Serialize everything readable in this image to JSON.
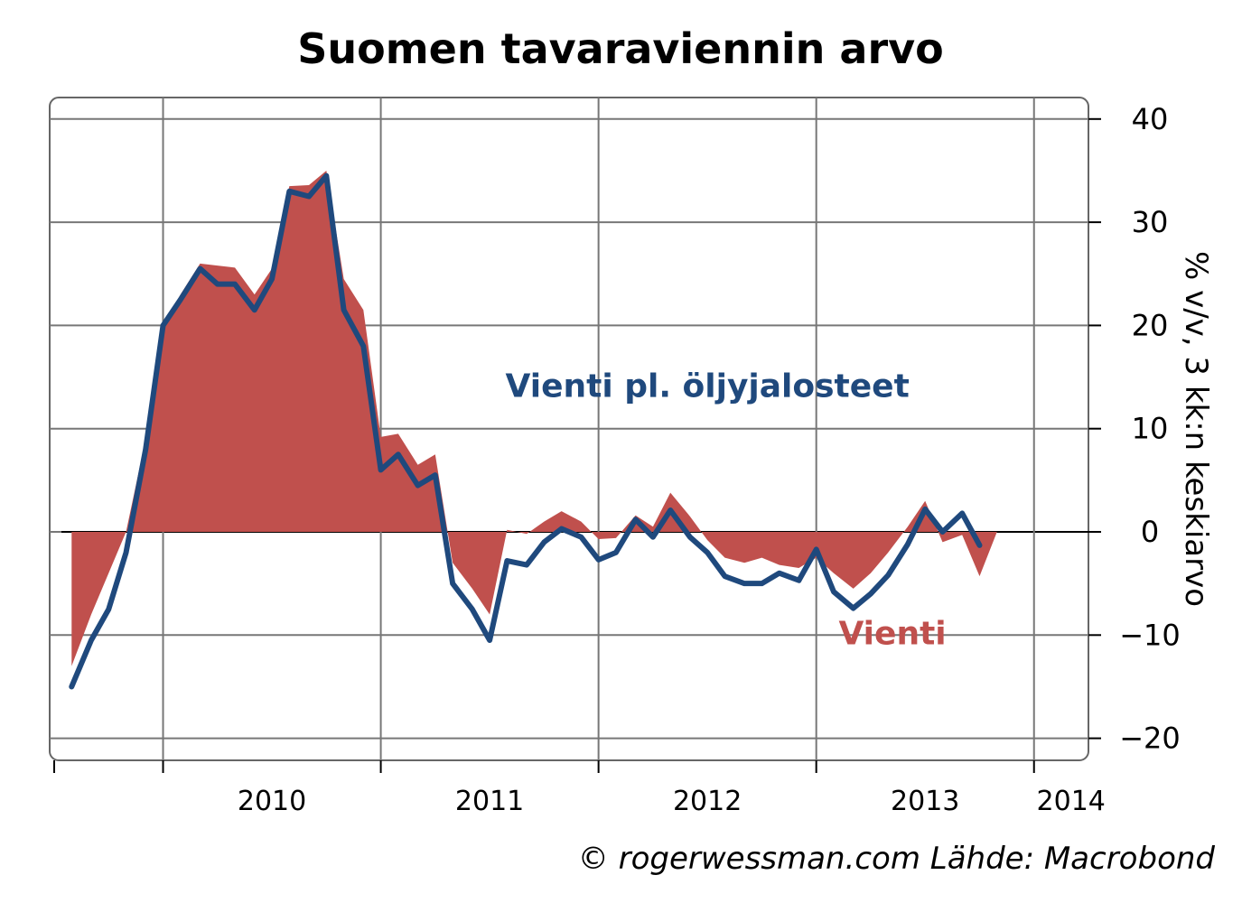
{
  "chart_data": {
    "type": "area",
    "title": "Suomen tavaraviennin arvo",
    "ylabel": "% v/v, 3 kk:n keskiarvo",
    "ylim": [
      -20,
      40
    ],
    "yticks": [
      -20,
      -10,
      0,
      10,
      20,
      30,
      40
    ],
    "y_axis_side": "right",
    "xlim": [
      2009.5,
      2014.25
    ],
    "xticks": [
      2010,
      2011,
      2012,
      2013,
      2014
    ],
    "xtick_labels": [
      "2010",
      "2011",
      "2012",
      "2013",
      "2014"
    ],
    "grid": true,
    "colors": {
      "vienti": "#c0504d",
      "vienti_pl": "#1f497d"
    },
    "series": [
      {
        "name": "Vienti",
        "style": "area",
        "x": [
          2009.58,
          2009.67,
          2009.75,
          2009.83,
          2009.92,
          2010.0,
          2010.08,
          2010.17,
          2010.25,
          2010.33,
          2010.42,
          2010.5,
          2010.58,
          2010.67,
          2010.75,
          2010.83,
          2010.92,
          2011.0,
          2011.08,
          2011.17,
          2011.25,
          2011.33,
          2011.42,
          2011.5,
          2011.58,
          2011.67,
          2011.75,
          2011.83,
          2011.92,
          2012.0,
          2012.08,
          2012.17,
          2012.25,
          2012.33,
          2012.42,
          2012.5,
          2012.58,
          2012.67,
          2012.75,
          2012.83,
          2012.92,
          2013.0,
          2013.08,
          2013.17,
          2013.25,
          2013.33,
          2013.42,
          2013.5,
          2013.58,
          2013.67,
          2013.75,
          2013.83,
          2013.92,
          2014.0,
          2014.08,
          2014.17
        ],
        "values": [
          -13,
          -8,
          -4,
          0,
          9,
          20,
          23,
          26,
          25.8,
          25.6,
          23,
          25.5,
          33.5,
          33.6,
          35,
          24.5,
          21.5,
          9.2,
          9.5,
          6.5,
          7.5,
          -3,
          -5.5,
          -8,
          0.2,
          -0.2,
          1,
          2,
          1,
          -0.7,
          -0.6,
          1.6,
          0.5,
          3.8,
          1.5,
          -0.8,
          -2.5,
          -3,
          -2.5,
          -3.2,
          -3.5,
          -2.5,
          -4,
          -5.5,
          -4,
          -2,
          0.5,
          3,
          -1,
          -0.3,
          -4.3,
          0,
          0,
          0,
          0,
          0
        ]
      },
      {
        "name": "Vienti pl. öljyjalosteet",
        "style": "line",
        "x": [
          2009.58,
          2009.67,
          2009.75,
          2009.83,
          2009.92,
          2010.0,
          2010.08,
          2010.17,
          2010.25,
          2010.33,
          2010.42,
          2010.5,
          2010.58,
          2010.67,
          2010.75,
          2010.83,
          2010.92,
          2011.0,
          2011.08,
          2011.17,
          2011.25,
          2011.33,
          2011.42,
          2011.5,
          2011.58,
          2011.67,
          2011.75,
          2011.83,
          2011.92,
          2012.0,
          2012.08,
          2012.17,
          2012.25,
          2012.33,
          2012.42,
          2012.5,
          2012.58,
          2012.67,
          2012.75,
          2012.83,
          2012.92,
          2013.0,
          2013.08,
          2013.17,
          2013.25,
          2013.33,
          2013.42,
          2013.5,
          2013.58,
          2013.67,
          2013.75
        ],
        "values": [
          -15,
          -10.5,
          -7.5,
          -2,
          8,
          20,
          22.5,
          25.5,
          24,
          24,
          21.5,
          24.5,
          33,
          32.5,
          34.5,
          21.5,
          18,
          6,
          7.5,
          4.5,
          5.5,
          -5,
          -7.5,
          -10.5,
          -2.8,
          -3.2,
          -1,
          0.3,
          -0.5,
          -2.7,
          -2,
          1.2,
          -0.5,
          2.1,
          -0.5,
          -2,
          -4.3,
          -5,
          -5,
          -4,
          -4.7,
          -1.7,
          -5.8,
          -7.4,
          -6,
          -4.2,
          -1.2,
          2.2,
          0,
          1.8,
          -1.3
        ]
      }
    ],
    "annotations": [
      {
        "text": "Vienti pl. öljyjalosteet",
        "x": 2012.5,
        "y": 13.1,
        "series": "vienti_pl"
      },
      {
        "text": "Vienti",
        "x": 2013.35,
        "y": -10.9,
        "series": "vienti"
      }
    ],
    "source": "© rogerwessman.com Lähde: Macrobond"
  }
}
